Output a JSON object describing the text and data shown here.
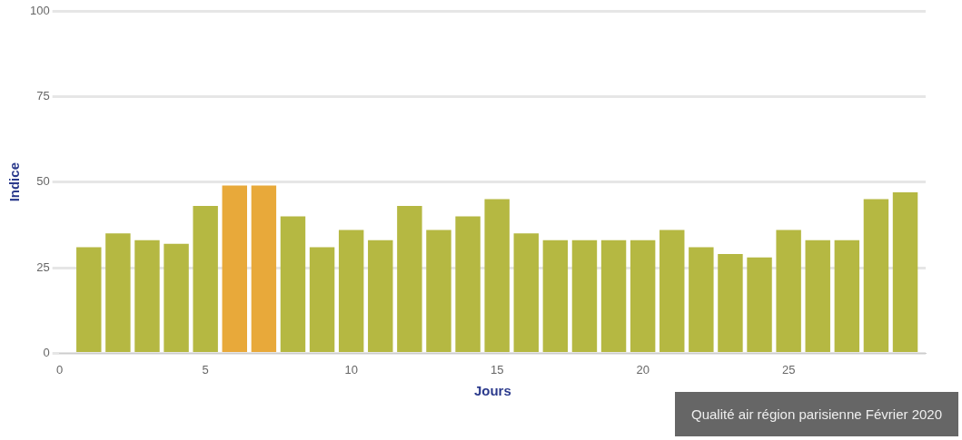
{
  "chart_data": {
    "type": "bar",
    "xlabel": "Jours",
    "ylabel": "Indice",
    "x": [
      1,
      2,
      3,
      4,
      5,
      6,
      7,
      8,
      9,
      10,
      11,
      12,
      13,
      14,
      15,
      16,
      17,
      18,
      19,
      20,
      21,
      22,
      23,
      24,
      25,
      26,
      27,
      28,
      29
    ],
    "values": [
      31,
      35,
      33,
      32,
      43,
      49,
      49,
      40,
      31,
      36,
      33,
      43,
      36,
      40,
      45,
      35,
      33,
      33,
      33,
      33,
      36,
      31,
      29,
      28,
      36,
      33,
      33,
      45,
      47
    ],
    "colors": [
      "#b5b842",
      "#b5b842",
      "#b5b842",
      "#b5b842",
      "#b5b842",
      "#e8a93a",
      "#e8a93a",
      "#b5b842",
      "#b5b842",
      "#b5b842",
      "#b5b842",
      "#b5b842",
      "#b5b842",
      "#b5b842",
      "#b5b842",
      "#b5b842",
      "#b5b842",
      "#b5b842",
      "#b5b842",
      "#b5b842",
      "#b5b842",
      "#b5b842",
      "#b5b842",
      "#b5b842",
      "#b5b842",
      "#b5b842",
      "#b5b842",
      "#b5b842",
      "#b5b842"
    ],
    "xlim": [
      0,
      29.7
    ],
    "xticks": [
      0,
      5,
      10,
      15,
      20,
      25
    ],
    "ylim": [
      0,
      100
    ],
    "yticks": [
      0,
      25,
      50,
      75,
      100
    ],
    "grid": "y",
    "legend": false,
    "annotations": [
      "Qualité air région parisienne Février 2020"
    ]
  }
}
